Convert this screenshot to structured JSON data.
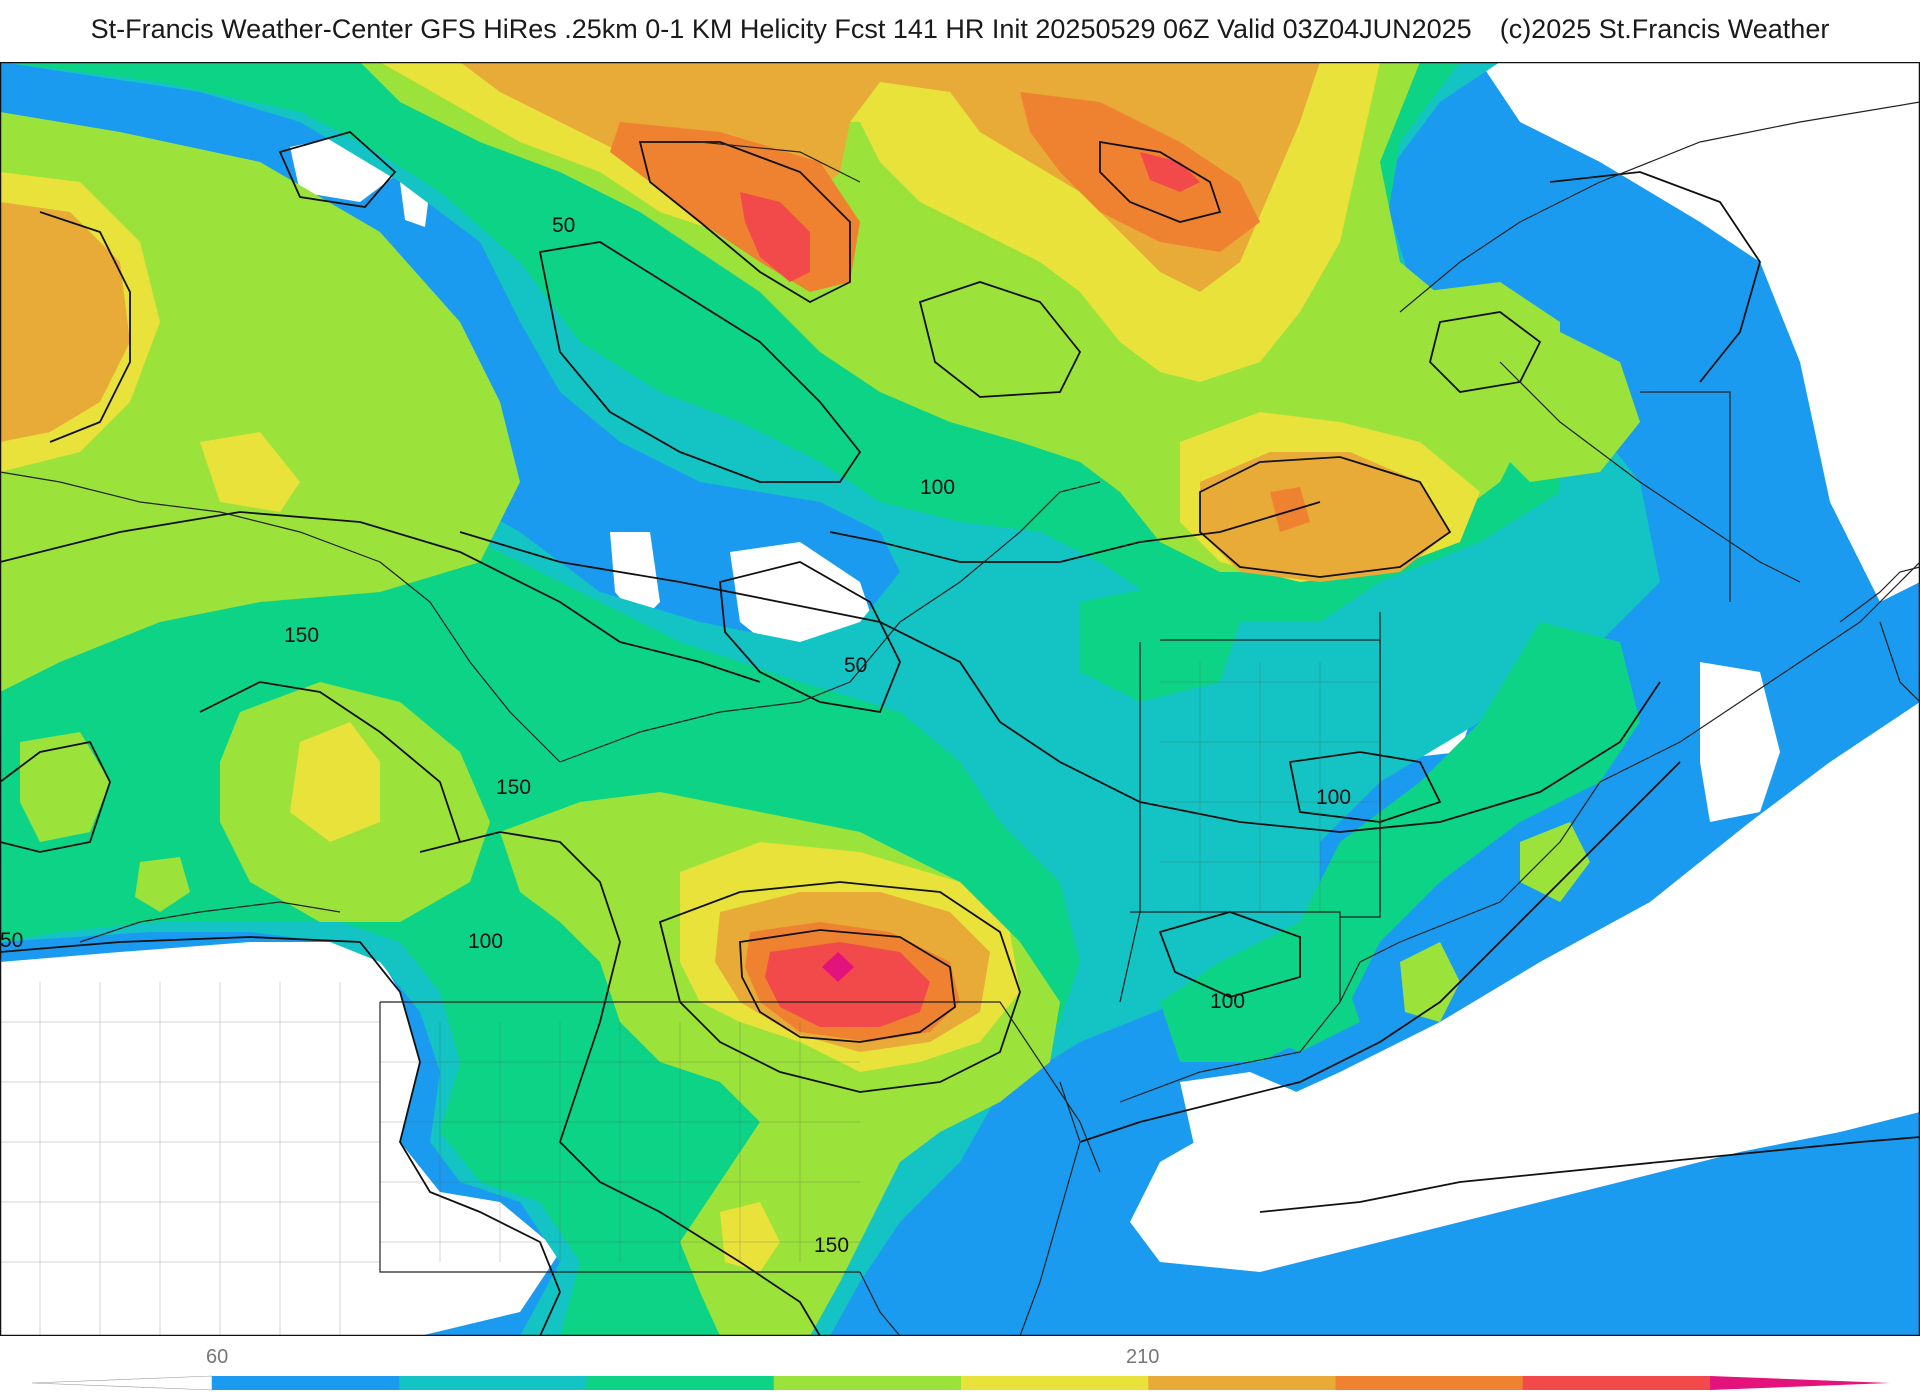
{
  "header": {
    "title": "St-Francis Weather-Center GFS HiRes .25km 0-1 KM Helicity Fcst 141 HR Init 20250529 06Z  Valid 03Z04JUN2025",
    "copyright": "(c)2025 St.Francis Weather"
  },
  "map": {
    "field": "0-1 KM Helicity",
    "contour_labels": [
      {
        "text": "50"
      },
      {
        "text": "50"
      },
      {
        "text": "50"
      },
      {
        "text": "100"
      },
      {
        "text": "100"
      },
      {
        "text": "100"
      },
      {
        "text": "100"
      },
      {
        "text": "150"
      },
      {
        "text": "150"
      },
      {
        "text": "150"
      }
    ]
  },
  "colorbar": {
    "tick_labels": [
      "60",
      "210"
    ],
    "colors": [
      "#ffffff",
      "#1a9bf0",
      "#14c3c3",
      "#0dd386",
      "#9be33a",
      "#e8e23a",
      "#e8ab38",
      "#ef8230",
      "#f24a4a",
      "#e3137b"
    ]
  }
}
